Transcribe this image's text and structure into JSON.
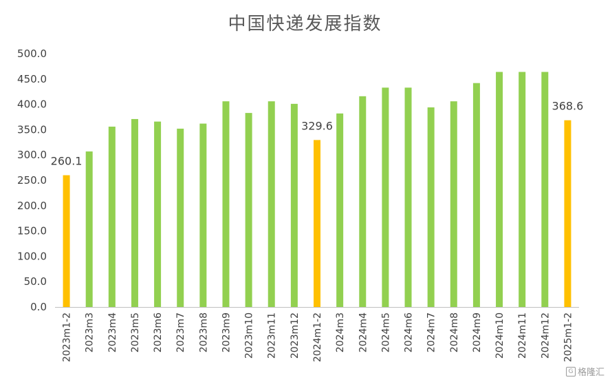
{
  "chart_data": {
    "type": "bar",
    "title": "中国快递发展指数",
    "categories": [
      "2023m1-2",
      "2023m3",
      "2023m4",
      "2023m5",
      "2023m6",
      "2023m7",
      "2023m8",
      "2023m9",
      "2023m10",
      "2023m11",
      "2023m12",
      "2024m1-2",
      "2024m3",
      "2024m4",
      "2024m5",
      "2024m6",
      "2024m7",
      "2024m8",
      "2024m9",
      "2024m10",
      "2024m11",
      "2024m12",
      "2025m1-2"
    ],
    "values": [
      260.1,
      307,
      356,
      371,
      366,
      352,
      362,
      406,
      383,
      406,
      401,
      329.6,
      382,
      416,
      433,
      433,
      394,
      406,
      442,
      464,
      464,
      464,
      368.6
    ],
    "highlight_indices": [
      0,
      11,
      22
    ],
    "data_labels": {
      "0": "260.1",
      "11": "329.6",
      "22": "368.6"
    },
    "y_ticks": [
      "0.0",
      "50.0",
      "100.0",
      "150.0",
      "200.0",
      "250.0",
      "300.0",
      "350.0",
      "400.0",
      "450.0",
      "500.0"
    ],
    "ylim": [
      0,
      500
    ],
    "grid": false,
    "legend": "none",
    "colors": {
      "bar": "#92D050",
      "highlight": "#FFC000",
      "axis": "#bfbfbf",
      "text": "#404040",
      "title": "#595959"
    }
  },
  "watermark": {
    "icon": "logo-glyph-icon",
    "glyph": "G",
    "text": "格隆汇"
  }
}
